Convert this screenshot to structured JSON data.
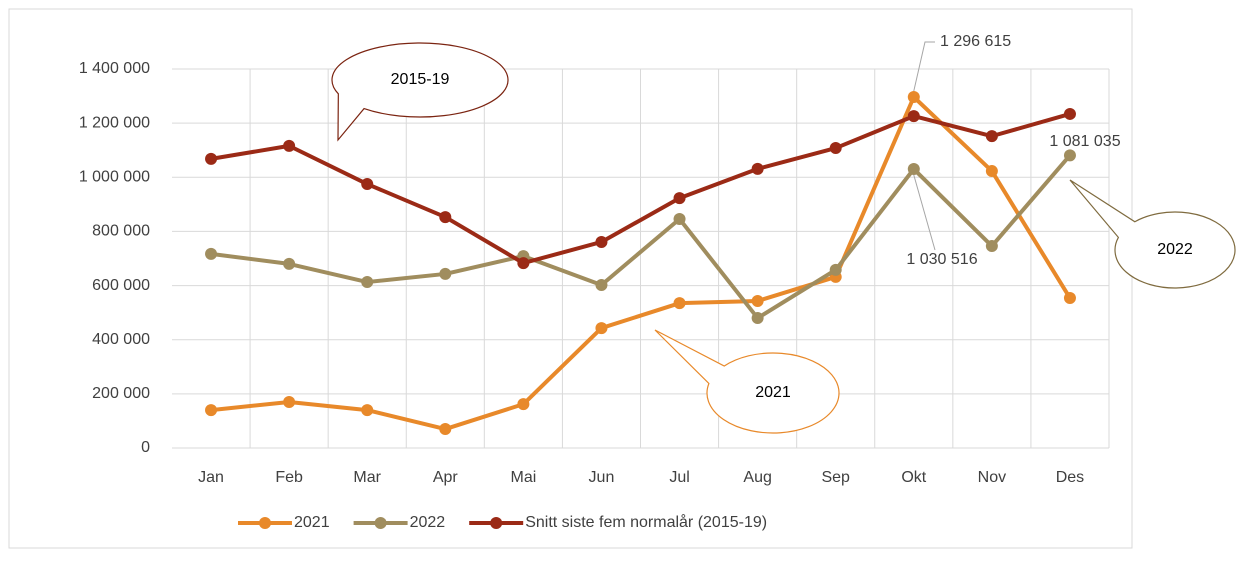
{
  "chart_data": {
    "type": "line",
    "categories": [
      "Jan",
      "Feb",
      "Mar",
      "Apr",
      "Mai",
      "Jun",
      "Jul",
      "Aug",
      "Sep",
      "Okt",
      "Nov",
      "Des"
    ],
    "series": [
      {
        "name": "2021",
        "color": "#e8892a",
        "values": [
          140000,
          170000,
          140000,
          70000,
          162000,
          443000,
          535000,
          543000,
          632000,
          1296615,
          1023000,
          554000
        ],
        "value_labels": [
          null,
          null,
          null,
          null,
          null,
          null,
          null,
          null,
          null,
          "1 296 615",
          null,
          null
        ]
      },
      {
        "name": "2022",
        "color": "#a08d5e",
        "values": [
          717000,
          680000,
          613000,
          643000,
          709000,
          602000,
          846000,
          480000,
          658000,
          1030516,
          746000,
          1081035
        ],
        "value_labels": [
          null,
          null,
          null,
          null,
          null,
          null,
          null,
          null,
          null,
          "1 030 516",
          null,
          "1 081 035"
        ]
      },
      {
        "name": "Snitt siste fem normalår (2015-19)",
        "color": "#9b2a16",
        "values": [
          1068000,
          1116000,
          975000,
          853000,
          683000,
          761000,
          923000,
          1031000,
          1108000,
          1226000,
          1152000,
          1234000
        ]
      }
    ],
    "ylim": [
      0,
      1400000
    ],
    "yticks": [
      0,
      {
        "value": 200000,
        "label": "200 000"
      },
      {
        "value": 400000,
        "label": "400 000"
      },
      {
        "value": 600000,
        "label": "600 000"
      },
      {
        "value": 800000,
        "label": "800 000"
      },
      {
        "value": 1000000,
        "label": "1 000 000"
      },
      {
        "value": 1200000,
        "label": "1 200 000"
      },
      {
        "value": 1400000,
        "label": "1 400 000"
      }
    ],
    "grid": true,
    "legend": "bottom",
    "annotations": [
      "2015-19",
      "2021",
      "2022"
    ]
  }
}
